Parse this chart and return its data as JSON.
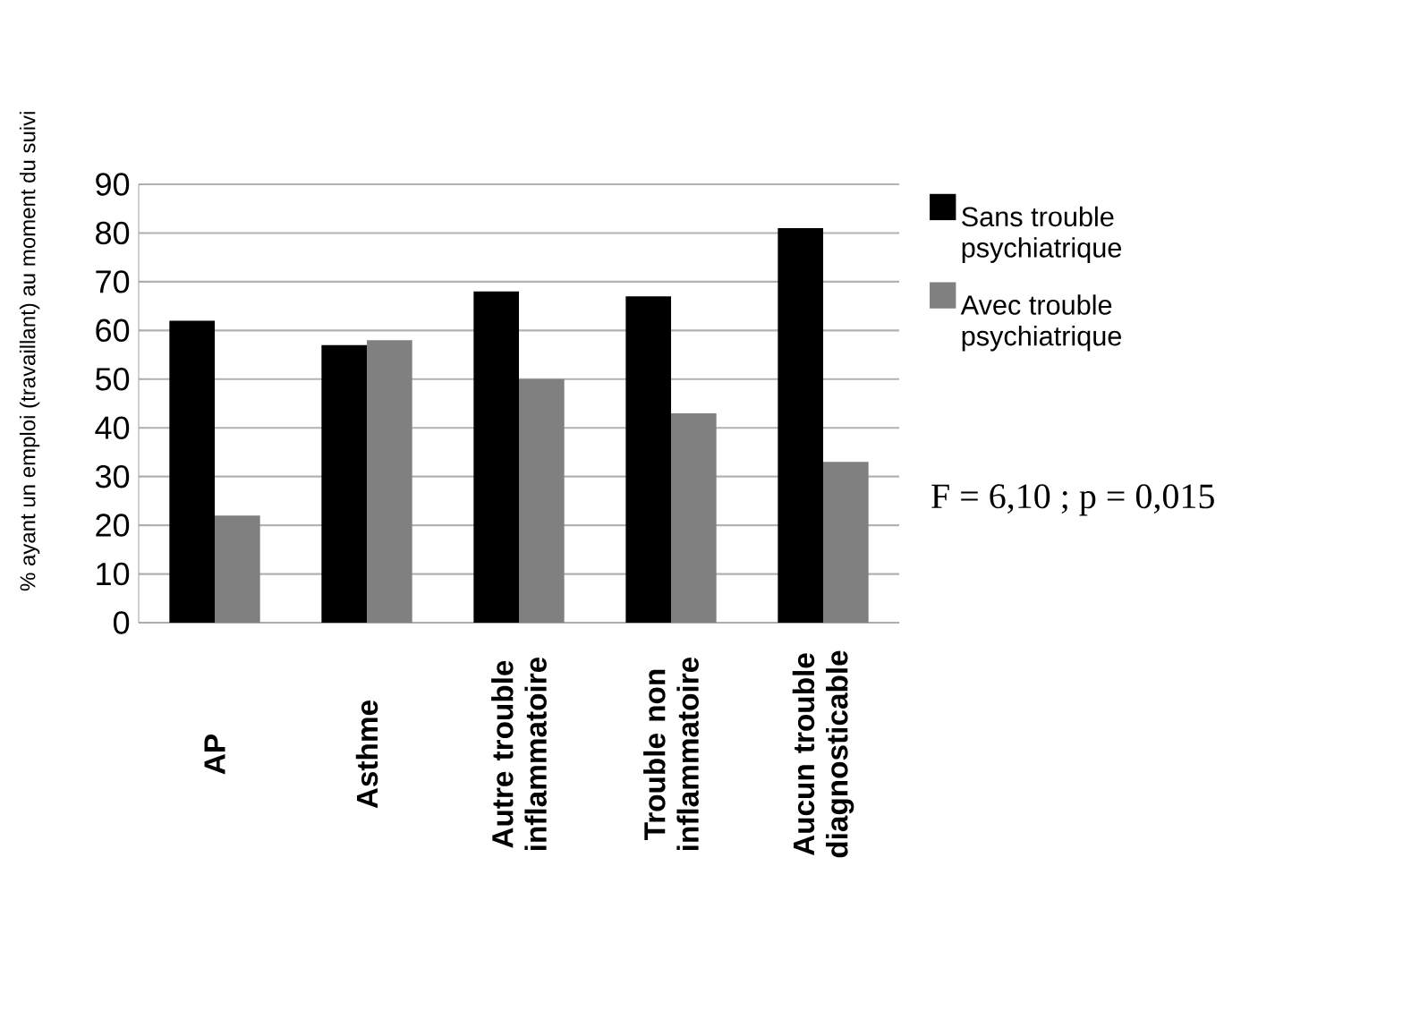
{
  "chart_data": {
    "type": "bar",
    "ylabel": "% ayant un emploi (travaillant) au moment du suivi",
    "categories": [
      "AP",
      "Asthme",
      "Autre trouble inflammatoire",
      "Trouble non inflammatoire",
      "Aucun trouble diagnosticable"
    ],
    "series": [
      {
        "name": "Sans trouble psychiatrique",
        "color": "#000000",
        "values": [
          62,
          57,
          68,
          67,
          81
        ]
      },
      {
        "name": "Avec trouble psychiatrique",
        "color": "#808080",
        "values": [
          22,
          58,
          50,
          43,
          33
        ]
      }
    ],
    "ylim": [
      0,
      90
    ],
    "yticks": [
      0,
      10,
      20,
      30,
      40,
      50,
      60,
      70,
      80,
      90
    ],
    "grid": "y",
    "legend": "right",
    "annotations": [
      "F = 6,10 ; p = 0,015"
    ]
  }
}
